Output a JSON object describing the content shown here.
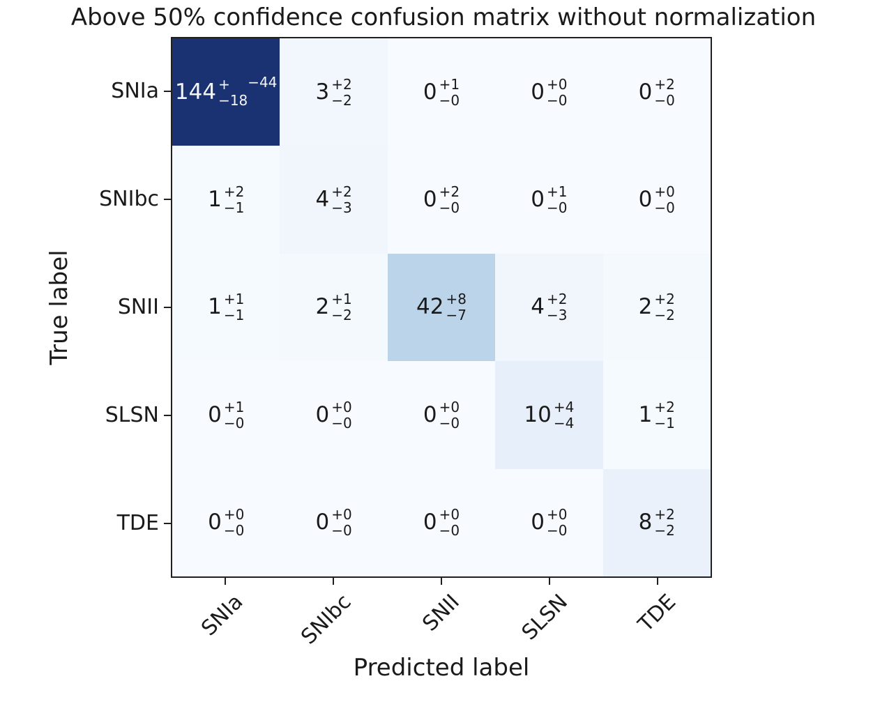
{
  "colors": {
    "figure_background": "#ffffff",
    "axis_spine": "#1f1f1f",
    "text": "#1a1a1a",
    "diagonal_max": "#1b3272"
  },
  "chart_data": {
    "type": "heatmap",
    "title": "Above 50% confidence confusion matrix without normalization",
    "xlabel": "Predicted label",
    "ylabel": "True label",
    "colormap": "Blues",
    "x_tick_labels": [
      "SNIa",
      "SNIbc",
      "SNII",
      "SLSN",
      "TDE"
    ],
    "y_tick_labels": [
      "SNIa",
      "SNIbc",
      "SNII",
      "SLSN",
      "TDE"
    ],
    "values": [
      [
        144,
        3,
        0,
        0,
        0
      ],
      [
        1,
        4,
        0,
        0,
        0
      ],
      [
        1,
        2,
        42,
        4,
        2
      ],
      [
        0,
        0,
        0,
        10,
        1
      ],
      [
        0,
        0,
        0,
        0,
        8
      ]
    ],
    "errors_plus": [
      [
        44,
        2,
        1,
        0,
        2
      ],
      [
        2,
        2,
        2,
        1,
        0
      ],
      [
        1,
        1,
        8,
        2,
        2
      ],
      [
        1,
        0,
        0,
        4,
        2
      ],
      [
        0,
        0,
        0,
        0,
        2
      ]
    ],
    "errors_minus": [
      [
        18,
        2,
        0,
        0,
        0
      ],
      [
        1,
        3,
        0,
        0,
        0
      ],
      [
        1,
        2,
        7,
        3,
        2
      ],
      [
        0,
        0,
        0,
        4,
        1
      ],
      [
        0,
        0,
        0,
        0,
        2
      ]
    ],
    "cell_display": [
      [
        {
          "main": "144",
          "sup": "+",
          "sub": "−18",
          "sup2": "−44"
        },
        {
          "main": "3",
          "sup": "+2",
          "sub": "−2",
          "sup2": ""
        },
        {
          "main": "0",
          "sup": "+1",
          "sub": "−0",
          "sup2": ""
        },
        {
          "main": "0",
          "sup": "+0",
          "sub": "−0",
          "sup2": ""
        },
        {
          "main": "0",
          "sup": "+2",
          "sub": "−0",
          "sup2": ""
        }
      ],
      [
        {
          "main": "1",
          "sup": "+2",
          "sub": "−1",
          "sup2": ""
        },
        {
          "main": "4",
          "sup": "+2",
          "sub": "−3",
          "sup2": ""
        },
        {
          "main": "0",
          "sup": "+2",
          "sub": "−0",
          "sup2": ""
        },
        {
          "main": "0",
          "sup": "+1",
          "sub": "−0",
          "sup2": ""
        },
        {
          "main": "0",
          "sup": "+0",
          "sub": "−0",
          "sup2": ""
        }
      ],
      [
        {
          "main": "1",
          "sup": "+1",
          "sub": "−1",
          "sup2": ""
        },
        {
          "main": "2",
          "sup": "+1",
          "sub": "−2",
          "sup2": ""
        },
        {
          "main": "42",
          "sup": "+8",
          "sub": "−7",
          "sup2": ""
        },
        {
          "main": "4",
          "sup": "+2",
          "sub": "−3",
          "sup2": ""
        },
        {
          "main": "2",
          "sup": "+2",
          "sub": "−2",
          "sup2": ""
        }
      ],
      [
        {
          "main": "0",
          "sup": "+1",
          "sub": "−0",
          "sup2": ""
        },
        {
          "main": "0",
          "sup": "+0",
          "sub": "−0",
          "sup2": ""
        },
        {
          "main": "0",
          "sup": "+0",
          "sub": "−0",
          "sup2": ""
        },
        {
          "main": "10",
          "sup": "+4",
          "sub": "−4",
          "sup2": ""
        },
        {
          "main": "1",
          "sup": "+2",
          "sub": "−1",
          "sup2": ""
        }
      ],
      [
        {
          "main": "0",
          "sup": "+0",
          "sub": "−0",
          "sup2": ""
        },
        {
          "main": "0",
          "sup": "+0",
          "sub": "−0",
          "sup2": ""
        },
        {
          "main": "0",
          "sup": "+0",
          "sub": "−0",
          "sup2": ""
        },
        {
          "main": "0",
          "sup": "+0",
          "sub": "−0",
          "sup2": ""
        },
        {
          "main": "8",
          "sup": "+2",
          "sub": "−2",
          "sup2": ""
        }
      ]
    ],
    "cell_colors": [
      [
        "#1b3272",
        "#f2f7fd",
        "#f7fbff",
        "#f7fbff",
        "#f7fbff"
      ],
      [
        "#f5fafe",
        "#f1f6fc",
        "#f7fbff",
        "#f7fbff",
        "#f7fbff"
      ],
      [
        "#f5fafe",
        "#f4f9fd",
        "#bcd4ea",
        "#f1f6fc",
        "#f4f9fd"
      ],
      [
        "#f7fbff",
        "#f7fbff",
        "#f7fbff",
        "#e7effa",
        "#f5fafe"
      ],
      [
        "#f7fbff",
        "#f7fbff",
        "#f7fbff",
        "#f7fbff",
        "#eaf1fa"
      ]
    ],
    "cell_text_colors": [
      [
        "#f2f5fb",
        "#1a1a1a",
        "#1a1a1a",
        "#1a1a1a",
        "#1a1a1a"
      ],
      [
        "#1a1a1a",
        "#1a1a1a",
        "#1a1a1a",
        "#1a1a1a",
        "#1a1a1a"
      ],
      [
        "#1a1a1a",
        "#1a1a1a",
        "#1a1a1a",
        "#1a1a1a",
        "#1a1a1a"
      ],
      [
        "#1a1a1a",
        "#1a1a1a",
        "#1a1a1a",
        "#1a1a1a",
        "#1a1a1a"
      ],
      [
        "#1a1a1a",
        "#1a1a1a",
        "#1a1a1a",
        "#1a1a1a",
        "#1a1a1a"
      ]
    ]
  }
}
